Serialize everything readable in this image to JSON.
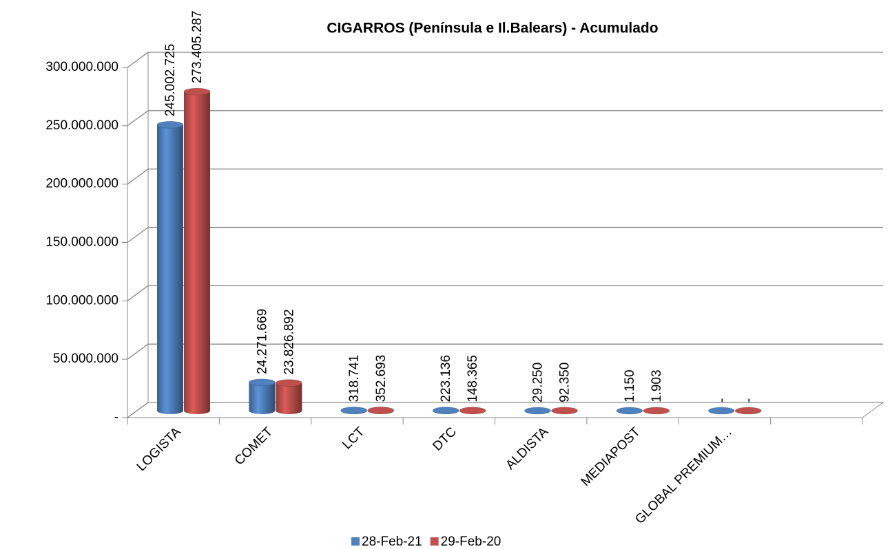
{
  "chart_data": {
    "type": "bar3d",
    "title": "CIGARROS  (Península e Il.Balears) - Acumulado",
    "categories": [
      "LOGISTA",
      "COMET",
      "LCT",
      "DTC",
      "ALDISTA",
      "MEDIAPOST",
      "GLOBAL PREMIUM…",
      null
    ],
    "series": [
      {
        "name": "28-Feb-21",
        "color": "#4f81bd",
        "values": [
          245002725,
          24271669,
          318741,
          223136,
          29250,
          1150,
          0,
          null
        ],
        "value_labels": [
          "245.002.725",
          "24.271.669",
          "318.741",
          "223.136",
          "29.250",
          "1.150",
          "-",
          null
        ]
      },
      {
        "name": "29-Feb-20",
        "color": "#c0504d",
        "values": [
          273405287,
          23826892,
          352693,
          148365,
          92350,
          1903,
          0,
          null
        ],
        "value_labels": [
          "273.405.287",
          "23.826.892",
          "352.693",
          "148.365",
          "92.350",
          "1.903",
          "-",
          null
        ]
      }
    ],
    "ylim": [
      0,
      300000000
    ],
    "yticks": [
      {
        "value": 0,
        "label": "-"
      },
      {
        "value": 50000000,
        "label": "50.000.000"
      },
      {
        "value": 100000000,
        "label": "100.000.000"
      },
      {
        "value": 150000000,
        "label": "150.000.000"
      },
      {
        "value": 200000000,
        "label": "200.000.000"
      },
      {
        "value": 250000000,
        "label": "250.000.000"
      },
      {
        "value": 300000000,
        "label": "300.000.000"
      }
    ],
    "grid": true,
    "legend": "bottom"
  }
}
